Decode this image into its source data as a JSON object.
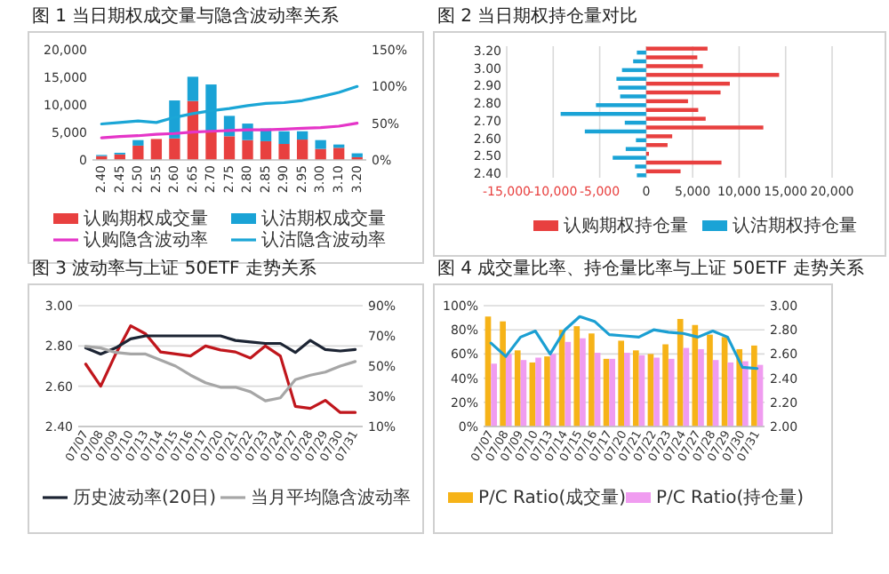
{
  "chart_data": [
    {
      "type": "bar",
      "title": "图 1 当日期权成交量与隐含波动率关系",
      "stacked": true,
      "legend": "bottom",
      "categories": [
        "2.40",
        "2.45",
        "2.50",
        "2.55",
        "2.60",
        "2.65",
        "2.70",
        "2.75",
        "2.80",
        "2.85",
        "2.90",
        "2.95",
        "3.00",
        "3.10",
        "3.20"
      ],
      "series": [
        {
          "name": "认购期权成交量",
          "color": "#e8403f",
          "values": [
            700,
            1000,
            2600,
            3800,
            3900,
            10700,
            5000,
            4300,
            3600,
            3400,
            2900,
            3700,
            2000,
            2200,
            500
          ]
        },
        {
          "name": "认沽期权成交量",
          "color": "#1aa3d6",
          "values": [
            200,
            300,
            1000,
            0,
            6900,
            4400,
            8700,
            3700,
            3000,
            2300,
            2300,
            1500,
            1600,
            600,
            700
          ]
        },
        {
          "name": "认购隐含波动率",
          "type": "line",
          "axis": "y2",
          "color": "#e535c8",
          "values": [
            30,
            32,
            33,
            35,
            36,
            38,
            39,
            40,
            41,
            41,
            42,
            43,
            44,
            46,
            50
          ]
        },
        {
          "name": "认沽隐含波动率",
          "type": "line",
          "axis": "y2",
          "color": "#1ba6d6",
          "values": [
            49,
            51,
            53,
            51,
            58,
            63,
            67,
            70,
            74,
            77,
            78,
            81,
            86,
            92,
            100
          ]
        }
      ],
      "ylim": [
        0,
        20000
      ],
      "yticks": [
        0,
        {
          "value": 5000,
          "label": "5,000"
        },
        {
          "value": 10000,
          "label": "10,000"
        },
        {
          "value": 15000,
          "label": "15,000"
        },
        {
          "value": 20000,
          "label": "20,000"
        }
      ],
      "y2lim": [
        0,
        150
      ],
      "y2ticks": [
        {
          "value": 0,
          "label": "0%"
        },
        {
          "value": 50,
          "label": "50%"
        },
        {
          "value": 100,
          "label": "100%"
        },
        {
          "value": 150,
          "label": "150%"
        }
      ]
    },
    {
      "type": "bar",
      "title": "图 2 当日期权持仓量对比",
      "orientation": "horizontal",
      "legend": "bottom",
      "grid": "x",
      "categories": [
        "3.20",
        null,
        "3.00",
        null,
        "2.90",
        null,
        "2.80",
        null,
        "2.70",
        null,
        "2.60",
        null,
        "2.50",
        null,
        "2.40"
      ],
      "series": [
        {
          "name": "认购期权持仓量",
          "color": "#e8403f",
          "values": [
            6600,
            5500,
            6100,
            14300,
            9000,
            8000,
            4500,
            5600,
            6400,
            12600,
            2800,
            2300,
            300,
            8100,
            3700
          ]
        },
        {
          "name": "认沽期权持仓量",
          "color": "#1aa3d6",
          "values": [
            -1000,
            -1400,
            -2600,
            -3200,
            -3000,
            -2800,
            -5400,
            -9200,
            -2300,
            -6600,
            -1100,
            -2200,
            -3600,
            -1200,
            -1000
          ]
        }
      ],
      "xlim": [
        -15000,
        20000
      ],
      "xticks": [
        {
          "value": -15000,
          "label": "-15,000"
        },
        {
          "value": -10000,
          "label": "-10,000"
        },
        {
          "value": -5000,
          "label": "-5,000"
        },
        0,
        {
          "value": 5000,
          "label": "5,000"
        },
        {
          "value": 10000,
          "label": "10,000"
        },
        {
          "value": 15000,
          "label": "15,000"
        },
        {
          "value": 20000,
          "label": "20,000"
        }
      ]
    },
    {
      "type": "line",
      "title": "图 3 波动率与上证 50ETF 走势关系",
      "legend": "bottom",
      "grid": "y",
      "categories": [
        "07/07",
        "07/08",
        "07/09",
        "07/10",
        "07/13",
        "07/14",
        "07/15",
        "07/16",
        "07/17",
        "07/20",
        "07/21",
        "07/22",
        "07/23",
        "07/24",
        "07/27",
        "07/28",
        "07/29",
        "07/30",
        "07/31"
      ],
      "series": [
        {
          "color": "#c0161c",
          "values": [
            2.71,
            2.6,
            2.76,
            2.9,
            2.86,
            2.77,
            2.76,
            2.75,
            2.8,
            2.78,
            2.77,
            2.74,
            2.8,
            2.75,
            2.5,
            2.49,
            2.53,
            2.47,
            2.47
          ]
        },
        {
          "name": "历史波动率(20日)",
          "axis": "y2",
          "color": "#1c2433",
          "values": [
            62,
            58,
            62,
            68,
            70,
            70,
            70,
            70,
            70,
            70,
            67,
            66,
            65,
            65,
            59,
            67,
            61,
            60,
            61
          ]
        },
        {
          "name": "当月平均隐含波动率",
          "axis": "y2",
          "color": "#a6a6a6",
          "values": [
            63,
            62,
            59,
            58,
            58,
            54,
            50,
            44,
            39,
            36,
            36,
            33,
            27,
            29,
            41,
            44,
            46,
            50,
            53
          ]
        }
      ],
      "ylim": [
        2.4,
        3.0
      ],
      "yticks": [
        {
          "value": 2.4,
          "label": "2.40"
        },
        {
          "value": 2.6,
          "label": "2.60"
        },
        {
          "value": 2.8,
          "label": "2.80"
        },
        {
          "value": 3.0,
          "label": "3.00"
        }
      ],
      "y2lim": [
        10,
        90
      ],
      "y2ticks": [
        {
          "value": 10,
          "label": "10%"
        },
        {
          "value": 30,
          "label": "30%"
        },
        {
          "value": 50,
          "label": "50%"
        },
        {
          "value": 70,
          "label": "70%"
        },
        {
          "value": 90,
          "label": "90%"
        }
      ]
    },
    {
      "type": "bar",
      "title": "图 4 成交量比率、持仓量比率与上证 50ETF 走势关系",
      "legend": "bottom",
      "grid": "y",
      "categories": [
        "07/07",
        "07/08",
        "07/09",
        "07/10",
        "07/13",
        "07/14",
        "07/15",
        "07/16",
        "07/17",
        "07/20",
        "07/21",
        "07/22",
        "07/23",
        "07/24",
        "07/27",
        "07/28",
        "07/29",
        "07/30",
        "07/31"
      ],
      "series": [
        {
          "name": "P/C Ratio(成交量)",
          "color": "#f6b318",
          "values": [
            91,
            87,
            63,
            53,
            58,
            80,
            83,
            77,
            56,
            71,
            63,
            60,
            68,
            89,
            84,
            76,
            74,
            64,
            67
          ]
        },
        {
          "name": "P/C Ratio(持仓量)",
          "color": "#f09cf0",
          "values": [
            52,
            60,
            55,
            57,
            60,
            70,
            73,
            61,
            56,
            61,
            59,
            57,
            56,
            65,
            64,
            55,
            53,
            54,
            51
          ]
        },
        {
          "type": "line",
          "axis": "y2",
          "color": "#1b9fd2",
          "values": [
            2.69,
            2.58,
            2.74,
            2.79,
            2.6,
            2.8,
            2.91,
            2.87,
            2.76,
            2.75,
            2.74,
            2.8,
            2.78,
            2.77,
            2.74,
            2.79,
            2.74,
            2.49,
            2.48
          ]
        }
      ],
      "ylim": [
        0,
        100
      ],
      "yticks": [
        {
          "value": 0,
          "label": "0%"
        },
        {
          "value": 20,
          "label": "20%"
        },
        {
          "value": 40,
          "label": "40%"
        },
        {
          "value": 60,
          "label": "60%"
        },
        {
          "value": 80,
          "label": "80%"
        },
        {
          "value": 100,
          "label": "100%"
        }
      ],
      "y2lim": [
        2.0,
        3.0
      ],
      "y2ticks": [
        {
          "value": 2.0,
          "label": "2.00"
        },
        {
          "value": 2.2,
          "label": "2.20"
        },
        {
          "value": 2.4,
          "label": "2.40"
        },
        {
          "value": 2.6,
          "label": "2.60"
        },
        {
          "value": 2.8,
          "label": "2.80"
        },
        {
          "value": 3.0,
          "label": "3.00"
        }
      ]
    }
  ]
}
